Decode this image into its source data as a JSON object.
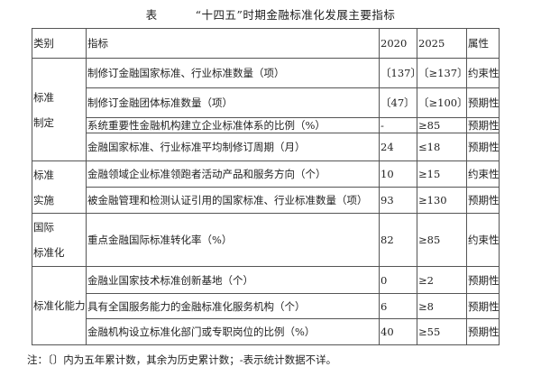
{
  "title": {
    "label": "表",
    "text": "“十四五”时期金融标准化发展主要指标"
  },
  "headers": [
    "类别",
    "指标",
    "2020",
    "2025",
    "属性"
  ],
  "groups": [
    {
      "category": [
        "标准",
        "制定"
      ],
      "rows": [
        {
          "indicator": "制修订金融国家标准、行业标准数量（项）",
          "y2020": "〔137〕",
          "y2025": "〔≥137〕",
          "attr": "约束性"
        },
        {
          "indicator": "制修订金融团体标准数量（项）",
          "y2020": "〔47〕",
          "y2025": "〔≥100〕",
          "attr": "预期性"
        },
        {
          "indicator": "系统重要性金融机构建立企业标准体系的比例（%）",
          "y2020": "-",
          "y2025": "≥85",
          "attr": "预期性"
        },
        {
          "indicator": "金融国家标准、行业标准平均制修订周期（月）",
          "y2020": "24",
          "y2025": "≤18",
          "attr": "预期性"
        }
      ]
    },
    {
      "category": [
        "标准",
        "实施"
      ],
      "rows": [
        {
          "indicator": "金融领域企业标准领跑者活动产品和服务方向（个）",
          "y2020": "10",
          "y2025": "≥15",
          "attr": "约束性"
        },
        {
          "indicator": "被金融管理和检测认证引用的国家标准、行业标准数量（项）",
          "y2020": "93",
          "y2025": "≥130",
          "attr": "预期性"
        }
      ]
    },
    {
      "category": [
        "国际",
        "标准化"
      ],
      "rows": [
        {
          "indicator": "重点金融国际标准转化率（%）",
          "y2020": "82",
          "y2025": "≥85",
          "attr": "约束性"
        }
      ]
    },
    {
      "category": [
        "标准化能力"
      ],
      "rows": [
        {
          "indicator": "金融业国家技术标准创新基地（个）",
          "y2020": "0",
          "y2025": "≥2",
          "attr": "预期性"
        },
        {
          "indicator": "具有全国服务能力的金融标准化服务机构（个）",
          "y2020": "6",
          "y2025": "≥8",
          "attr": "预期性"
        },
        {
          "indicator": "金融机构设立标准化部门或专职岗位的比例（%）",
          "y2020": "40",
          "y2025": "≥55",
          "attr": "预期性"
        }
      ]
    }
  ],
  "note": "注：〔〕内为五年累计数，其余为历史累计数；-表示统计数据不详。"
}
